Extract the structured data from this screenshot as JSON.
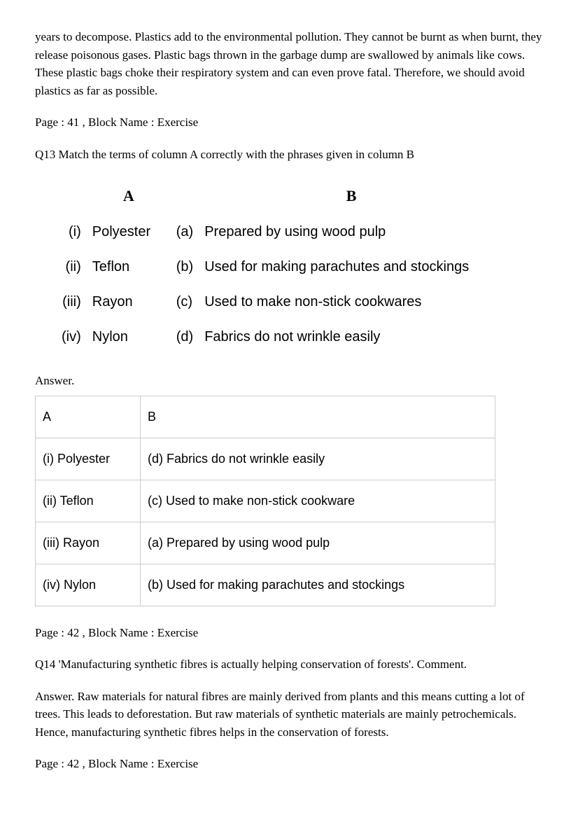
{
  "intro_paragraph": "years to decompose. Plastics add to the environmental pollution. They cannot be burnt as when burnt, they release poisonous gases. Plastic bags thrown in the garbage dump are swallowed by animals like cows. These plastic bags choke their respiratory system and can even prove fatal. Therefore, we should avoid plastics as far as possible.",
  "page_ref_1": "Page : 41 , Block Name : Exercise",
  "q13_text": "Q13 Match the terms of column A correctly with the phrases given in column B",
  "match_headers": {
    "a": "A",
    "b": "B"
  },
  "match_rows": [
    {
      "num": "(i)",
      "item": "Polyester",
      "opt": "(a)",
      "desc": "Prepared by using wood pulp"
    },
    {
      "num": "(ii)",
      "item": "Teflon",
      "opt": "(b)",
      "desc": "Used for making parachutes and stockings"
    },
    {
      "num": "(iii)",
      "item": "Rayon",
      "opt": "(c)",
      "desc": "Used to make non-stick cookwares"
    },
    {
      "num": "(iv)",
      "item": "Nylon",
      "opt": "(d)",
      "desc": "Fabrics do not wrinkle easily"
    }
  ],
  "answer_label": "Answer.",
  "answer_headers": {
    "a": "A",
    "b": "B"
  },
  "answer_rows": [
    {
      "a": "(i) Polyester",
      "b": "(d) Fabrics do not wrinkle easily"
    },
    {
      "a": "(ii) Teflon",
      "b": "(c) Used to make non-stick cookware"
    },
    {
      "a": "(iii) Rayon",
      "b": "(a) Prepared by using wood pulp"
    },
    {
      "a": "(iv) Nylon",
      "b": "(b) Used for making parachutes and stockings"
    }
  ],
  "page_ref_2": "Page : 42 , Block Name : Exercise",
  "q14_text": "Q14 'Manufacturing synthetic fibres is actually helping conservation of forests'. Comment.",
  "q14_answer": "Answer. Raw materials for natural fibres are mainly derived from plants and this means cutting a lot of trees. This leads to deforestation. But raw materials of synthetic materials are mainly petrochemicals. Hence, manufacturing synthetic fibres helps in the conservation of forests.",
  "page_ref_3": "Page : 42 , Block Name : Exercise"
}
